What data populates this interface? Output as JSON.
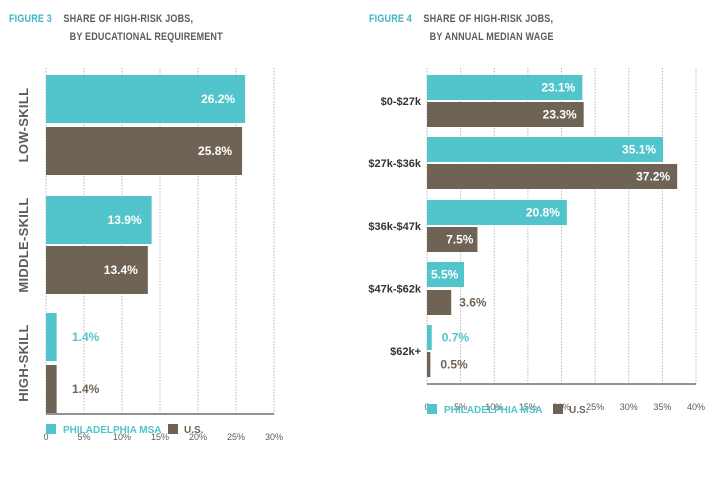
{
  "colors": {
    "philadelphia": "#52c4cb",
    "us": "#6f6356",
    "accent": "#3fb6c2",
    "text": "#5d5b5c",
    "grid": "#b8b8b8",
    "axis": "#6b6e72"
  },
  "chart_data": [
    {
      "type": "bar",
      "orientation": "horizontal",
      "figure_number": "FIGURE 3",
      "title": "SHARE OF HIGH-RISK JOBS,",
      "subtitle": "BY EDUCATIONAL REQUIREMENT",
      "categories": [
        "LOW-SKILL",
        "MIDDLE-SKILL",
        "HIGH-SKILL"
      ],
      "series": [
        {
          "name": "PHILADELPHIA MSA",
          "values": [
            26.2,
            13.9,
            1.4
          ],
          "labels": [
            "26.2%",
            "13.9%",
            "1.4%"
          ]
        },
        {
          "name": "U.S.",
          "values": [
            25.8,
            13.4,
            1.4
          ],
          "labels": [
            "25.8%",
            "13.4%",
            "1.4%"
          ]
        }
      ],
      "xlim": [
        0,
        30
      ],
      "xticks": [
        "0",
        "5%",
        "10%",
        "15%",
        "20%",
        "25%",
        "30%"
      ],
      "grid": true,
      "legend": "bottom-left"
    },
    {
      "type": "bar",
      "orientation": "horizontal",
      "figure_number": "FIGURE 4",
      "title": "SHARE OF HIGH-RISK JOBS,",
      "subtitle": "BY ANNUAL MEDIAN WAGE",
      "categories": [
        "$0-$27k",
        "$27k-$36k",
        "$36k-$47k",
        "$47k-$62k",
        "$62k+"
      ],
      "series": [
        {
          "name": "PHILADELPHIA MSA",
          "values": [
            23.1,
            35.1,
            20.8,
            5.5,
            0.7
          ],
          "labels": [
            "23.1%",
            "35.1%",
            "20.8%",
            "5.5%",
            "0.7%"
          ]
        },
        {
          "name": "U.S.",
          "values": [
            23.3,
            37.2,
            7.5,
            3.6,
            0.5
          ],
          "labels": [
            "23.3%",
            "37.2%",
            "7.5%",
            "3.6%",
            "0.5%"
          ]
        }
      ],
      "xlim": [
        0,
        40
      ],
      "xticks": [
        "0",
        "5%",
        "10%",
        "15%",
        "20%",
        "25%",
        "30%",
        "35%",
        "40%"
      ],
      "grid": true,
      "legend": "bottom-left"
    }
  ]
}
